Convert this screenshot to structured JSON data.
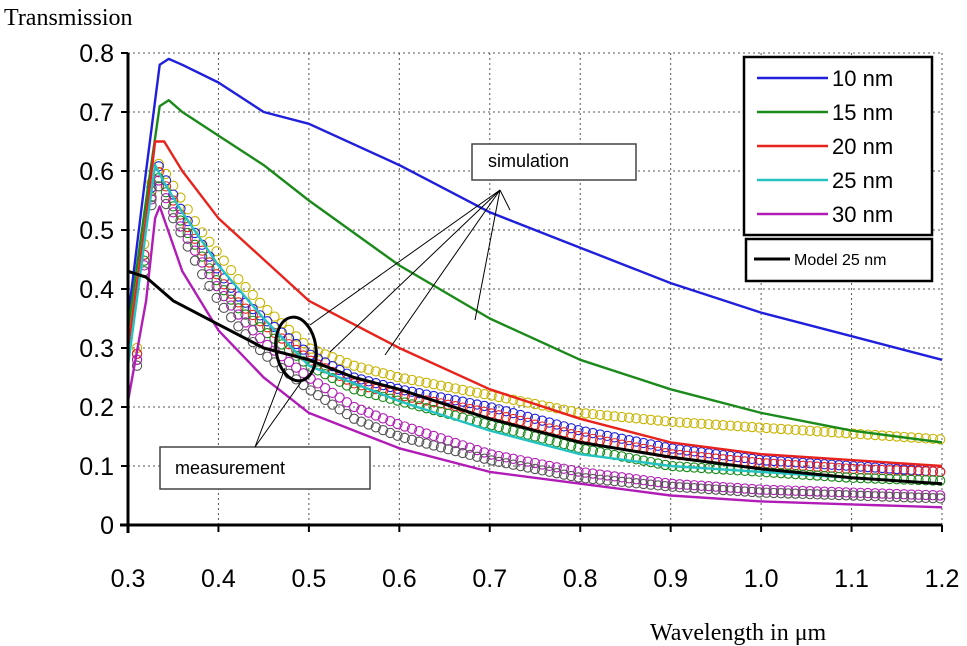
{
  "chart_data": {
    "type": "line",
    "title": "",
    "ylabel": "Transmission",
    "xlabel": "Wavelength in μm",
    "xlim": [
      0.3,
      1.2
    ],
    "ylim": [
      0,
      0.8
    ],
    "grid": true,
    "legend_position": "top-right",
    "x_ticks": [
      0.3,
      0.4,
      0.5,
      0.6,
      0.7,
      0.8,
      0.9,
      1.0,
      1.1,
      1.2
    ],
    "x_tick_labels": [
      "0.3",
      "0.4",
      "0.5",
      "0.6",
      "0.7",
      "0.8",
      "0.9",
      "1.0",
      "1.1",
      "1.2"
    ],
    "y_ticks": [
      0,
      0.1,
      0.2,
      0.3,
      0.4,
      0.5,
      0.6,
      0.7,
      0.8
    ],
    "y_tick_labels": [
      "0",
      "0.1",
      "0.2",
      "0.3",
      "0.4",
      "0.5",
      "0.6",
      "0.7",
      "0.8"
    ],
    "series": [
      {
        "name": "10 nm",
        "color": "#1f1fdc",
        "style": "line",
        "x": [
          0.3,
          0.32,
          0.335,
          0.345,
          0.36,
          0.4,
          0.45,
          0.5,
          0.6,
          0.7,
          0.8,
          0.9,
          1.0,
          1.1,
          1.2
        ],
        "y": [
          0.35,
          0.6,
          0.78,
          0.79,
          0.78,
          0.75,
          0.7,
          0.68,
          0.61,
          0.53,
          0.47,
          0.41,
          0.36,
          0.32,
          0.28
        ]
      },
      {
        "name": "15 nm",
        "color": "#1b8a1b",
        "style": "line",
        "x": [
          0.3,
          0.32,
          0.335,
          0.345,
          0.36,
          0.4,
          0.45,
          0.5,
          0.6,
          0.7,
          0.8,
          0.9,
          1.0,
          1.1,
          1.2
        ],
        "y": [
          0.33,
          0.55,
          0.71,
          0.72,
          0.7,
          0.66,
          0.61,
          0.55,
          0.44,
          0.35,
          0.28,
          0.23,
          0.19,
          0.16,
          0.14
        ]
      },
      {
        "name": "20 nm",
        "color": "#e8231c",
        "style": "line",
        "x": [
          0.3,
          0.32,
          0.33,
          0.34,
          0.36,
          0.4,
          0.45,
          0.5,
          0.6,
          0.7,
          0.8,
          0.9,
          1.0,
          1.1,
          1.2
        ],
        "y": [
          0.3,
          0.52,
          0.65,
          0.65,
          0.6,
          0.52,
          0.45,
          0.38,
          0.3,
          0.23,
          0.18,
          0.14,
          0.12,
          0.11,
          0.1
        ]
      },
      {
        "name": "25 nm",
        "color": "#25c2c2",
        "style": "line",
        "x": [
          0.3,
          0.32,
          0.33,
          0.34,
          0.36,
          0.4,
          0.45,
          0.5,
          0.6,
          0.7,
          0.8,
          0.9,
          1.0,
          1.1,
          1.2
        ],
        "y": [
          0.27,
          0.5,
          0.61,
          0.58,
          0.53,
          0.44,
          0.35,
          0.27,
          0.21,
          0.16,
          0.12,
          0.1,
          0.09,
          0.08,
          0.07
        ]
      },
      {
        "name": "30 nm",
        "color": "#b11cb7",
        "style": "line",
        "x": [
          0.3,
          0.32,
          0.33,
          0.335,
          0.36,
          0.4,
          0.45,
          0.5,
          0.6,
          0.7,
          0.8,
          0.9,
          1.0,
          1.1,
          1.2
        ],
        "y": [
          0.21,
          0.38,
          0.52,
          0.54,
          0.43,
          0.33,
          0.25,
          0.19,
          0.13,
          0.09,
          0.07,
          0.05,
          0.04,
          0.035,
          0.03
        ]
      },
      {
        "name": "Model 25 nm",
        "color": "#000000",
        "style": "line",
        "x": [
          0.3,
          0.32,
          0.35,
          0.4,
          0.45,
          0.5,
          0.55,
          0.6,
          0.7,
          0.8,
          0.9,
          1.0,
          1.1,
          1.2
        ],
        "y": [
          0.43,
          0.42,
          0.38,
          0.34,
          0.3,
          0.28,
          0.25,
          0.23,
          0.18,
          0.14,
          0.115,
          0.095,
          0.08,
          0.07
        ]
      }
    ],
    "measurements": [
      {
        "color": "#c8b400",
        "x": [
          0.31,
          0.32,
          0.33,
          0.34,
          0.36,
          0.38,
          0.4,
          0.42,
          0.45,
          0.5,
          0.55,
          0.6,
          0.7,
          0.8,
          0.9,
          1.0,
          1.1,
          1.2
        ],
        "y": [
          0.3,
          0.52,
          0.62,
          0.6,
          0.55,
          0.5,
          0.46,
          0.42,
          0.37,
          0.3,
          0.27,
          0.25,
          0.22,
          0.19,
          0.175,
          0.165,
          0.155,
          0.145
        ]
      },
      {
        "color": "#1f1fdc",
        "x": [
          0.31,
          0.32,
          0.33,
          0.34,
          0.36,
          0.38,
          0.4,
          0.42,
          0.45,
          0.5,
          0.55,
          0.6,
          0.7,
          0.8,
          0.9,
          1.0,
          1.1,
          1.2
        ],
        "y": [
          0.29,
          0.5,
          0.62,
          0.59,
          0.53,
          0.48,
          0.43,
          0.39,
          0.35,
          0.29,
          0.25,
          0.23,
          0.2,
          0.16,
          0.13,
          0.11,
          0.1,
          0.09
        ]
      },
      {
        "color": "#e8231c",
        "x": [
          0.31,
          0.32,
          0.33,
          0.34,
          0.36,
          0.38,
          0.4,
          0.42,
          0.45,
          0.5,
          0.55,
          0.6,
          0.7,
          0.8,
          0.9,
          1.0,
          1.1,
          1.2
        ],
        "y": [
          0.29,
          0.5,
          0.61,
          0.58,
          0.52,
          0.47,
          0.42,
          0.38,
          0.34,
          0.28,
          0.24,
          0.22,
          0.19,
          0.15,
          0.12,
          0.105,
          0.095,
          0.09
        ]
      },
      {
        "color": "#1b8a1b",
        "x": [
          0.31,
          0.32,
          0.33,
          0.34,
          0.36,
          0.38,
          0.4,
          0.42,
          0.45,
          0.5,
          0.55,
          0.6,
          0.7,
          0.8,
          0.9,
          1.0,
          1.1,
          1.2
        ],
        "y": [
          0.28,
          0.49,
          0.6,
          0.57,
          0.51,
          0.46,
          0.41,
          0.37,
          0.33,
          0.27,
          0.23,
          0.21,
          0.17,
          0.13,
          0.1,
          0.09,
          0.08,
          0.075
        ]
      },
      {
        "color": "#b11cb7",
        "x": [
          0.31,
          0.32,
          0.33,
          0.34,
          0.36,
          0.38,
          0.4,
          0.42,
          0.45,
          0.5,
          0.55,
          0.6,
          0.7,
          0.8,
          0.9,
          1.0,
          1.1,
          1.2
        ],
        "y": [
          0.28,
          0.48,
          0.6,
          0.56,
          0.5,
          0.45,
          0.4,
          0.36,
          0.31,
          0.25,
          0.2,
          0.17,
          0.12,
          0.09,
          0.07,
          0.06,
          0.055,
          0.05
        ]
      },
      {
        "color": "#555555",
        "x": [
          0.31,
          0.32,
          0.33,
          0.34,
          0.36,
          0.38,
          0.4,
          0.42,
          0.45,
          0.5,
          0.55,
          0.6,
          0.7,
          0.8,
          0.9,
          1.0,
          1.1,
          1.2
        ],
        "y": [
          0.27,
          0.47,
          0.59,
          0.55,
          0.49,
          0.43,
          0.38,
          0.34,
          0.29,
          0.23,
          0.18,
          0.15,
          0.11,
          0.08,
          0.065,
          0.055,
          0.05,
          0.045
        ]
      }
    ],
    "annotations": [
      {
        "text": "simulation"
      },
      {
        "text": "measurement"
      }
    ]
  }
}
